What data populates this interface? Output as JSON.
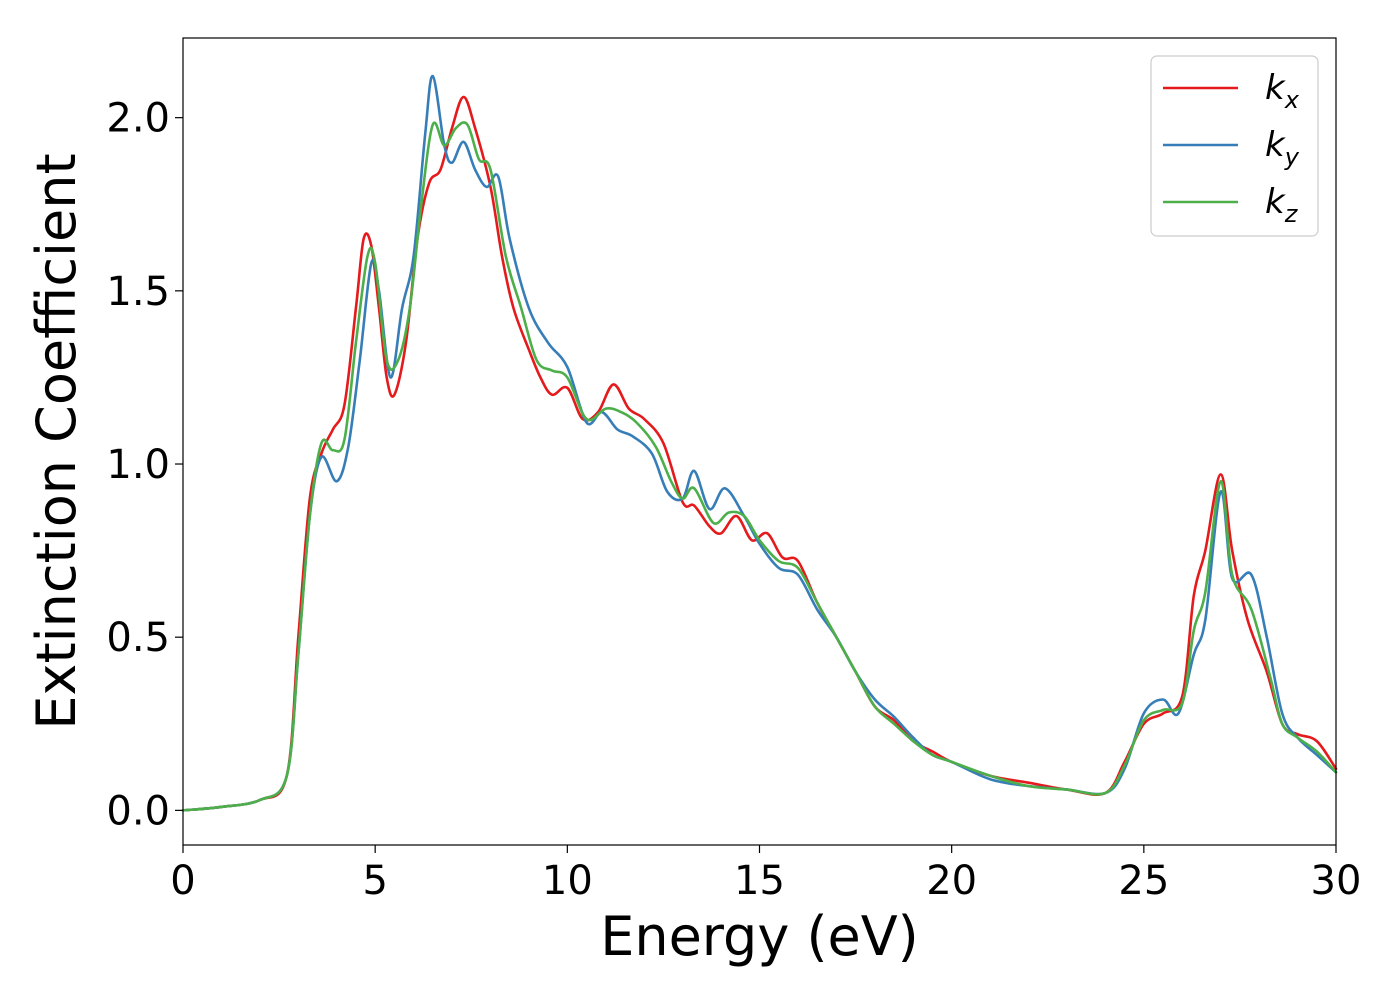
{
  "chart_data": {
    "type": "line",
    "title": "",
    "xlabel": "Energy (eV)",
    "ylabel": "Extinction Coefficient",
    "xlim": [
      0,
      30
    ],
    "ylim": [
      -0.1,
      2.23
    ],
    "xticks": [
      "0",
      "5",
      "10",
      "15",
      "20",
      "25",
      "30"
    ],
    "yticks": [
      "0.0",
      "0.5",
      "1.0",
      "1.5",
      "2.0"
    ],
    "grid": false,
    "legend": "top-right",
    "series": [
      {
        "name": "k",
        "subscript": "x",
        "color": "#e41a1c",
        "points": [
          [
            0,
            0
          ],
          [
            1,
            0.01
          ],
          [
            2,
            0.03
          ],
          [
            2.7,
            0.1
          ],
          [
            3.0,
            0.5
          ],
          [
            3.3,
            0.9
          ],
          [
            3.6,
            1.03
          ],
          [
            3.9,
            1.1
          ],
          [
            4.2,
            1.17
          ],
          [
            4.5,
            1.45
          ],
          [
            4.7,
            1.65
          ],
          [
            4.9,
            1.63
          ],
          [
            5.1,
            1.45
          ],
          [
            5.3,
            1.25
          ],
          [
            5.5,
            1.2
          ],
          [
            5.8,
            1.35
          ],
          [
            6.1,
            1.65
          ],
          [
            6.4,
            1.81
          ],
          [
            6.7,
            1.85
          ],
          [
            7.0,
            1.97
          ],
          [
            7.3,
            2.06
          ],
          [
            7.6,
            1.97
          ],
          [
            8.0,
            1.8
          ],
          [
            8.3,
            1.6
          ],
          [
            8.6,
            1.45
          ],
          [
            9.0,
            1.33
          ],
          [
            9.3,
            1.25
          ],
          [
            9.6,
            1.2
          ],
          [
            10.0,
            1.22
          ],
          [
            10.4,
            1.13
          ],
          [
            10.8,
            1.15
          ],
          [
            11.2,
            1.23
          ],
          [
            11.6,
            1.16
          ],
          [
            12.0,
            1.13
          ],
          [
            12.5,
            1.06
          ],
          [
            13.0,
            0.89
          ],
          [
            13.3,
            0.88
          ],
          [
            13.7,
            0.82
          ],
          [
            14.0,
            0.8
          ],
          [
            14.4,
            0.85
          ],
          [
            14.8,
            0.78
          ],
          [
            15.2,
            0.8
          ],
          [
            15.6,
            0.73
          ],
          [
            16.0,
            0.72
          ],
          [
            16.5,
            0.6
          ],
          [
            17.0,
            0.5
          ],
          [
            17.5,
            0.4
          ],
          [
            18.0,
            0.3
          ],
          [
            18.5,
            0.26
          ],
          [
            19.0,
            0.2
          ],
          [
            19.5,
            0.17
          ],
          [
            20.0,
            0.14
          ],
          [
            21.0,
            0.1
          ],
          [
            22.0,
            0.08
          ],
          [
            23.0,
            0.06
          ],
          [
            24.0,
            0.05
          ],
          [
            24.5,
            0.14
          ],
          [
            25.0,
            0.25
          ],
          [
            25.5,
            0.28
          ],
          [
            26.0,
            0.33
          ],
          [
            26.3,
            0.62
          ],
          [
            26.6,
            0.75
          ],
          [
            27.0,
            0.97
          ],
          [
            27.3,
            0.75
          ],
          [
            27.7,
            0.55
          ],
          [
            28.2,
            0.4
          ],
          [
            28.6,
            0.25
          ],
          [
            29.0,
            0.22
          ],
          [
            29.5,
            0.2
          ],
          [
            30,
            0.12
          ]
        ]
      },
      {
        "name": "k",
        "subscript": "y",
        "color": "#377eb8",
        "points": [
          [
            0,
            0
          ],
          [
            1,
            0.01
          ],
          [
            2,
            0.03
          ],
          [
            2.7,
            0.1
          ],
          [
            3.0,
            0.45
          ],
          [
            3.3,
            0.85
          ],
          [
            3.6,
            1.02
          ],
          [
            4.0,
            0.95
          ],
          [
            4.3,
            1.05
          ],
          [
            4.6,
            1.3
          ],
          [
            4.9,
            1.58
          ],
          [
            5.1,
            1.5
          ],
          [
            5.4,
            1.25
          ],
          [
            5.7,
            1.45
          ],
          [
            6.0,
            1.6
          ],
          [
            6.3,
            1.95
          ],
          [
            6.5,
            2.12
          ],
          [
            6.8,
            1.92
          ],
          [
            7.0,
            1.87
          ],
          [
            7.3,
            1.93
          ],
          [
            7.6,
            1.85
          ],
          [
            7.9,
            1.8
          ],
          [
            8.2,
            1.83
          ],
          [
            8.5,
            1.65
          ],
          [
            9.0,
            1.45
          ],
          [
            9.5,
            1.35
          ],
          [
            10.0,
            1.28
          ],
          [
            10.5,
            1.12
          ],
          [
            10.9,
            1.15
          ],
          [
            11.3,
            1.1
          ],
          [
            11.7,
            1.08
          ],
          [
            12.2,
            1.03
          ],
          [
            12.6,
            0.92
          ],
          [
            13.0,
            0.9
          ],
          [
            13.3,
            0.98
          ],
          [
            13.7,
            0.87
          ],
          [
            14.1,
            0.93
          ],
          [
            14.6,
            0.85
          ],
          [
            15.0,
            0.77
          ],
          [
            15.5,
            0.7
          ],
          [
            16.0,
            0.68
          ],
          [
            16.5,
            0.58
          ],
          [
            17.0,
            0.5
          ],
          [
            17.5,
            0.4
          ],
          [
            18.0,
            0.32
          ],
          [
            18.5,
            0.27
          ],
          [
            19.0,
            0.21
          ],
          [
            19.5,
            0.16
          ],
          [
            20.0,
            0.14
          ],
          [
            21.0,
            0.09
          ],
          [
            22.0,
            0.07
          ],
          [
            23.0,
            0.06
          ],
          [
            24.0,
            0.05
          ],
          [
            24.5,
            0.12
          ],
          [
            25.0,
            0.28
          ],
          [
            25.5,
            0.32
          ],
          [
            25.9,
            0.28
          ],
          [
            26.3,
            0.45
          ],
          [
            26.6,
            0.55
          ],
          [
            27.0,
            0.92
          ],
          [
            27.3,
            0.67
          ],
          [
            27.8,
            0.68
          ],
          [
            28.2,
            0.5
          ],
          [
            28.6,
            0.28
          ],
          [
            29.0,
            0.21
          ],
          [
            29.5,
            0.16
          ],
          [
            30,
            0.11
          ]
        ]
      },
      {
        "name": "k",
        "subscript": "z",
        "color": "#4daf4a",
        "points": [
          [
            0,
            0
          ],
          [
            1,
            0.01
          ],
          [
            2,
            0.03
          ],
          [
            2.7,
            0.1
          ],
          [
            3.0,
            0.45
          ],
          [
            3.3,
            0.85
          ],
          [
            3.6,
            1.06
          ],
          [
            3.9,
            1.04
          ],
          [
            4.2,
            1.07
          ],
          [
            4.5,
            1.35
          ],
          [
            4.8,
            1.6
          ],
          [
            5.0,
            1.58
          ],
          [
            5.3,
            1.3
          ],
          [
            5.6,
            1.3
          ],
          [
            5.9,
            1.45
          ],
          [
            6.2,
            1.75
          ],
          [
            6.5,
            1.98
          ],
          [
            6.8,
            1.92
          ],
          [
            7.1,
            1.97
          ],
          [
            7.4,
            1.98
          ],
          [
            7.7,
            1.88
          ],
          [
            8.0,
            1.85
          ],
          [
            8.4,
            1.6
          ],
          [
            8.8,
            1.45
          ],
          [
            9.2,
            1.3
          ],
          [
            9.6,
            1.27
          ],
          [
            10.0,
            1.25
          ],
          [
            10.5,
            1.13
          ],
          [
            11.0,
            1.16
          ],
          [
            11.4,
            1.15
          ],
          [
            11.8,
            1.12
          ],
          [
            12.3,
            1.05
          ],
          [
            12.7,
            0.95
          ],
          [
            13.0,
            0.9
          ],
          [
            13.3,
            0.93
          ],
          [
            13.8,
            0.83
          ],
          [
            14.2,
            0.86
          ],
          [
            14.6,
            0.85
          ],
          [
            15.0,
            0.78
          ],
          [
            15.5,
            0.72
          ],
          [
            16.0,
            0.7
          ],
          [
            16.5,
            0.6
          ],
          [
            17.0,
            0.5
          ],
          [
            17.5,
            0.4
          ],
          [
            18.0,
            0.3
          ],
          [
            18.5,
            0.25
          ],
          [
            19.0,
            0.2
          ],
          [
            19.5,
            0.16
          ],
          [
            20.0,
            0.14
          ],
          [
            21.0,
            0.1
          ],
          [
            22.0,
            0.07
          ],
          [
            23.0,
            0.06
          ],
          [
            24.0,
            0.05
          ],
          [
            24.5,
            0.13
          ],
          [
            25.0,
            0.26
          ],
          [
            25.5,
            0.29
          ],
          [
            26.0,
            0.31
          ],
          [
            26.3,
            0.52
          ],
          [
            26.6,
            0.63
          ],
          [
            27.0,
            0.95
          ],
          [
            27.3,
            0.68
          ],
          [
            27.8,
            0.58
          ],
          [
            28.3,
            0.38
          ],
          [
            28.6,
            0.25
          ],
          [
            29.0,
            0.21
          ],
          [
            29.5,
            0.17
          ],
          [
            30,
            0.11
          ]
        ]
      }
    ]
  }
}
